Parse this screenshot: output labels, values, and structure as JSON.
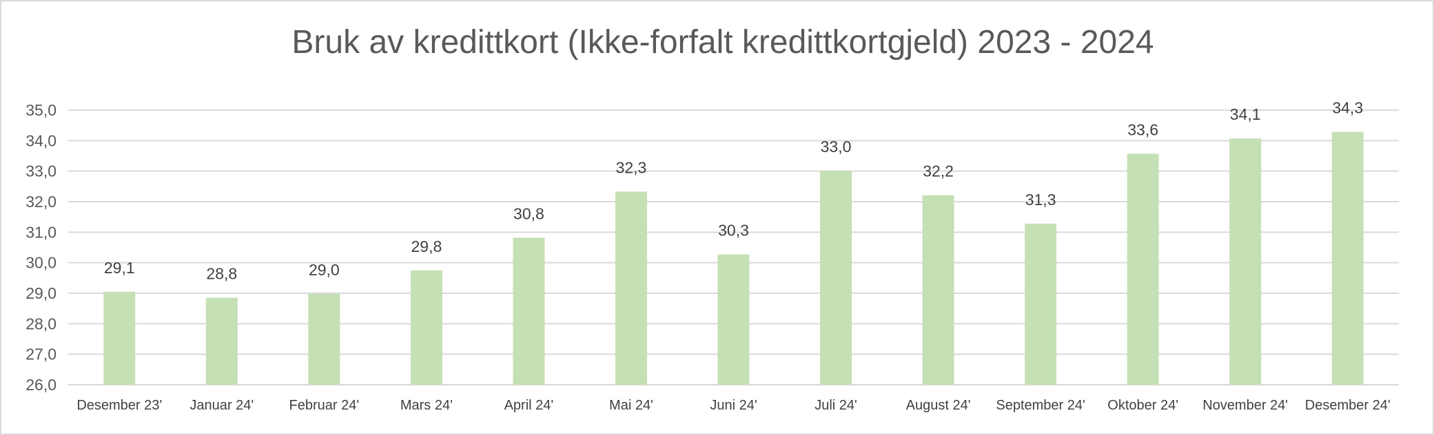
{
  "chart_data": {
    "type": "bar",
    "title": "Bruk av kredittkort (Ikke-forfalt kredittkortgjeld) 2023 - 2024",
    "categories": [
      "Desember 23'",
      "Januar 24'",
      "Februar 24'",
      "Mars 24'",
      "April 24'",
      "Mai 24'",
      "Juni 24'",
      "Juli 24'",
      "August 24'",
      "September 24'",
      "Oktober 24'",
      "November 24'",
      "Desember 24'"
    ],
    "values": [
      29.05,
      28.85,
      28.98,
      29.75,
      30.82,
      32.33,
      30.27,
      33.02,
      32.21,
      31.28,
      33.57,
      34.07,
      34.29
    ],
    "data_labels": [
      "29,1",
      "28,8",
      "29,0",
      "29,8",
      "30,8",
      "32,3",
      "30,3",
      "33,0",
      "32,2",
      "31,3",
      "33,6",
      "34,1",
      "34,3"
    ],
    "yticks": [
      26,
      27,
      28,
      29,
      30,
      31,
      32,
      33,
      34,
      35
    ],
    "ytick_labels": [
      "26,0",
      "27,0",
      "28,0",
      "29,0",
      "30,0",
      "31,0",
      "32,0",
      "33,0",
      "34,0",
      "35,0"
    ],
    "ylim": [
      26,
      35
    ],
    "xlabel": "",
    "ylabel": "",
    "grid": true,
    "legend": "none",
    "bar_color": "#c5e0b4"
  }
}
